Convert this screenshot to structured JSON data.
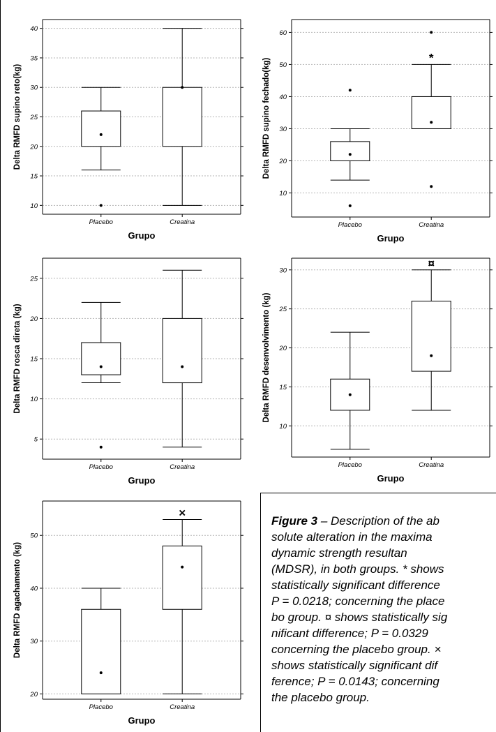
{
  "chart_data": [
    {
      "type": "box",
      "xlabel": "Grupo",
      "ylabel": "Delta RMFD supino reto(kg)",
      "categories": [
        "Placebo",
        "Creatina"
      ],
      "ylim": [
        8.5,
        41.5
      ],
      "yticks": [
        10,
        15,
        20,
        25,
        30,
        35,
        40
      ],
      "grid": true,
      "boxes": [
        {
          "group": "Placebo",
          "whisker_low": 16,
          "q1": 20,
          "q3": 26,
          "whisker_high": 30,
          "mean": 22,
          "outliers": [
            10
          ],
          "flag": ""
        },
        {
          "group": "Creatina",
          "whisker_low": 10,
          "q1": 20,
          "q3": 30,
          "whisker_high": 40,
          "mean": 30,
          "outliers": [],
          "flag": ""
        }
      ]
    },
    {
      "type": "box",
      "xlabel": "Grupo",
      "ylabel": "Delta RMFD supino fechado(kg)",
      "categories": [
        "Placebo",
        "Creatina"
      ],
      "ylim": [
        2.5,
        64
      ],
      "yticks": [
        10,
        20,
        30,
        40,
        50,
        60
      ],
      "grid": true,
      "boxes": [
        {
          "group": "Placebo",
          "whisker_low": 14,
          "q1": 20,
          "q3": 26,
          "whisker_high": 30,
          "mean": 22,
          "outliers": [
            6,
            42
          ],
          "flag": ""
        },
        {
          "group": "Creatina",
          "whisker_low": 30,
          "q1": 30,
          "q3": 40,
          "whisker_high": 50,
          "mean": 32,
          "outliers": [
            12,
            60
          ],
          "flag": "*"
        }
      ]
    },
    {
      "type": "box",
      "xlabel": "Grupo",
      "ylabel": "Delta RMFD rosca direta (kg)",
      "categories": [
        "Placebo",
        "Creatina"
      ],
      "ylim": [
        2.5,
        27.5
      ],
      "yticks": [
        5,
        10,
        15,
        20,
        25
      ],
      "grid": true,
      "boxes": [
        {
          "group": "Placebo",
          "whisker_low": 12,
          "q1": 13,
          "q3": 17,
          "whisker_high": 22,
          "mean": 14,
          "outliers": [
            4
          ],
          "flag": ""
        },
        {
          "group": "Creatina",
          "whisker_low": 4,
          "q1": 12,
          "q3": 20,
          "whisker_high": 26,
          "mean": 14,
          "outliers": [],
          "flag": ""
        }
      ]
    },
    {
      "type": "box",
      "xlabel": "Grupo",
      "ylabel": "Delta RMFD desenvolvimento (kg)",
      "categories": [
        "Placebo",
        "Creatina"
      ],
      "ylim": [
        6,
        31.5
      ],
      "yticks": [
        10,
        15,
        20,
        25,
        30
      ],
      "grid": true,
      "boxes": [
        {
          "group": "Placebo",
          "whisker_low": 7,
          "q1": 12,
          "q3": 16,
          "whisker_high": 22,
          "mean": 14,
          "outliers": [],
          "flag": ""
        },
        {
          "group": "Creatina",
          "whisker_low": 12,
          "q1": 17,
          "q3": 26,
          "whisker_high": 30,
          "mean": 19,
          "outliers": [],
          "flag": "¤"
        }
      ]
    },
    {
      "type": "box",
      "xlabel": "Grupo",
      "ylabel": "Delta RMFD agachamento (kg)",
      "categories": [
        "Placebo",
        "Creatina"
      ],
      "ylim": [
        19,
        56.5
      ],
      "yticks": [
        20,
        30,
        40,
        50
      ],
      "grid": true,
      "boxes": [
        {
          "group": "Placebo",
          "whisker_low": 20,
          "q1": 20,
          "q3": 36,
          "whisker_high": 40,
          "mean": 24,
          "outliers": [],
          "flag": ""
        },
        {
          "group": "Creatina",
          "whisker_low": 20,
          "q1": 36,
          "q3": 48,
          "whisker_high": 53,
          "mean": 44,
          "outliers": [],
          "flag": "×"
        }
      ]
    }
  ],
  "caption": {
    "label": "Figure 3",
    "lines": [
      " – Description of the ab",
      "solute alteration in the maxima",
      "dynamic strength resultan",
      "(MDSR), in both groups. * shows",
      "statistically significant difference",
      "P = 0.0218; concerning the place",
      "bo group. ¤ shows statistically sig",
      "nificant difference; P = 0.0329",
      "concerning the placebo group. ×",
      "shows statistically significant dif",
      "ference; P = 0.0143; concerning",
      "the placebo group."
    ]
  },
  "colors": {
    "box": "#000000",
    "grid": "#b5b5b5",
    "background": "#ffffff"
  }
}
